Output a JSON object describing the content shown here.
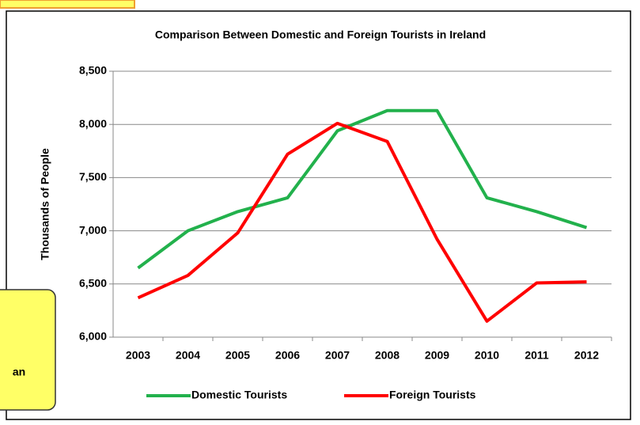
{
  "chart_data": {
    "type": "line",
    "title": "Comparison Between Domestic and Foreign Tourists in Ireland",
    "y_label": "Thousands of People",
    "categories": [
      "2003",
      "2004",
      "2005",
      "2006",
      "2007",
      "2008",
      "2009",
      "2010",
      "2011",
      "2012"
    ],
    "series": [
      {
        "name": "Domestic Tourists",
        "color": "#22b14c",
        "values": [
          6650,
          7000,
          7180,
          7310,
          7940,
          8130,
          8130,
          7310,
          7180,
          7030
        ]
      },
      {
        "name": "Foreign Tourists",
        "color": "#ff0000",
        "values": [
          6370,
          6580,
          6980,
          7720,
          8010,
          7840,
          6920,
          6150,
          6510,
          6520
        ]
      }
    ],
    "ylim": [
      6000,
      8500
    ],
    "yticks": [
      {
        "value": 6000,
        "label": "6,000"
      },
      {
        "value": 6500,
        "label": "6,500"
      },
      {
        "value": 7000,
        "label": "7,000"
      },
      {
        "value": 7500,
        "label": "7,500"
      },
      {
        "value": 8000,
        "label": "8,000"
      },
      {
        "value": 8500,
        "label": "8,500"
      }
    ],
    "grid": true,
    "legend": "bottom",
    "callout": "an"
  }
}
